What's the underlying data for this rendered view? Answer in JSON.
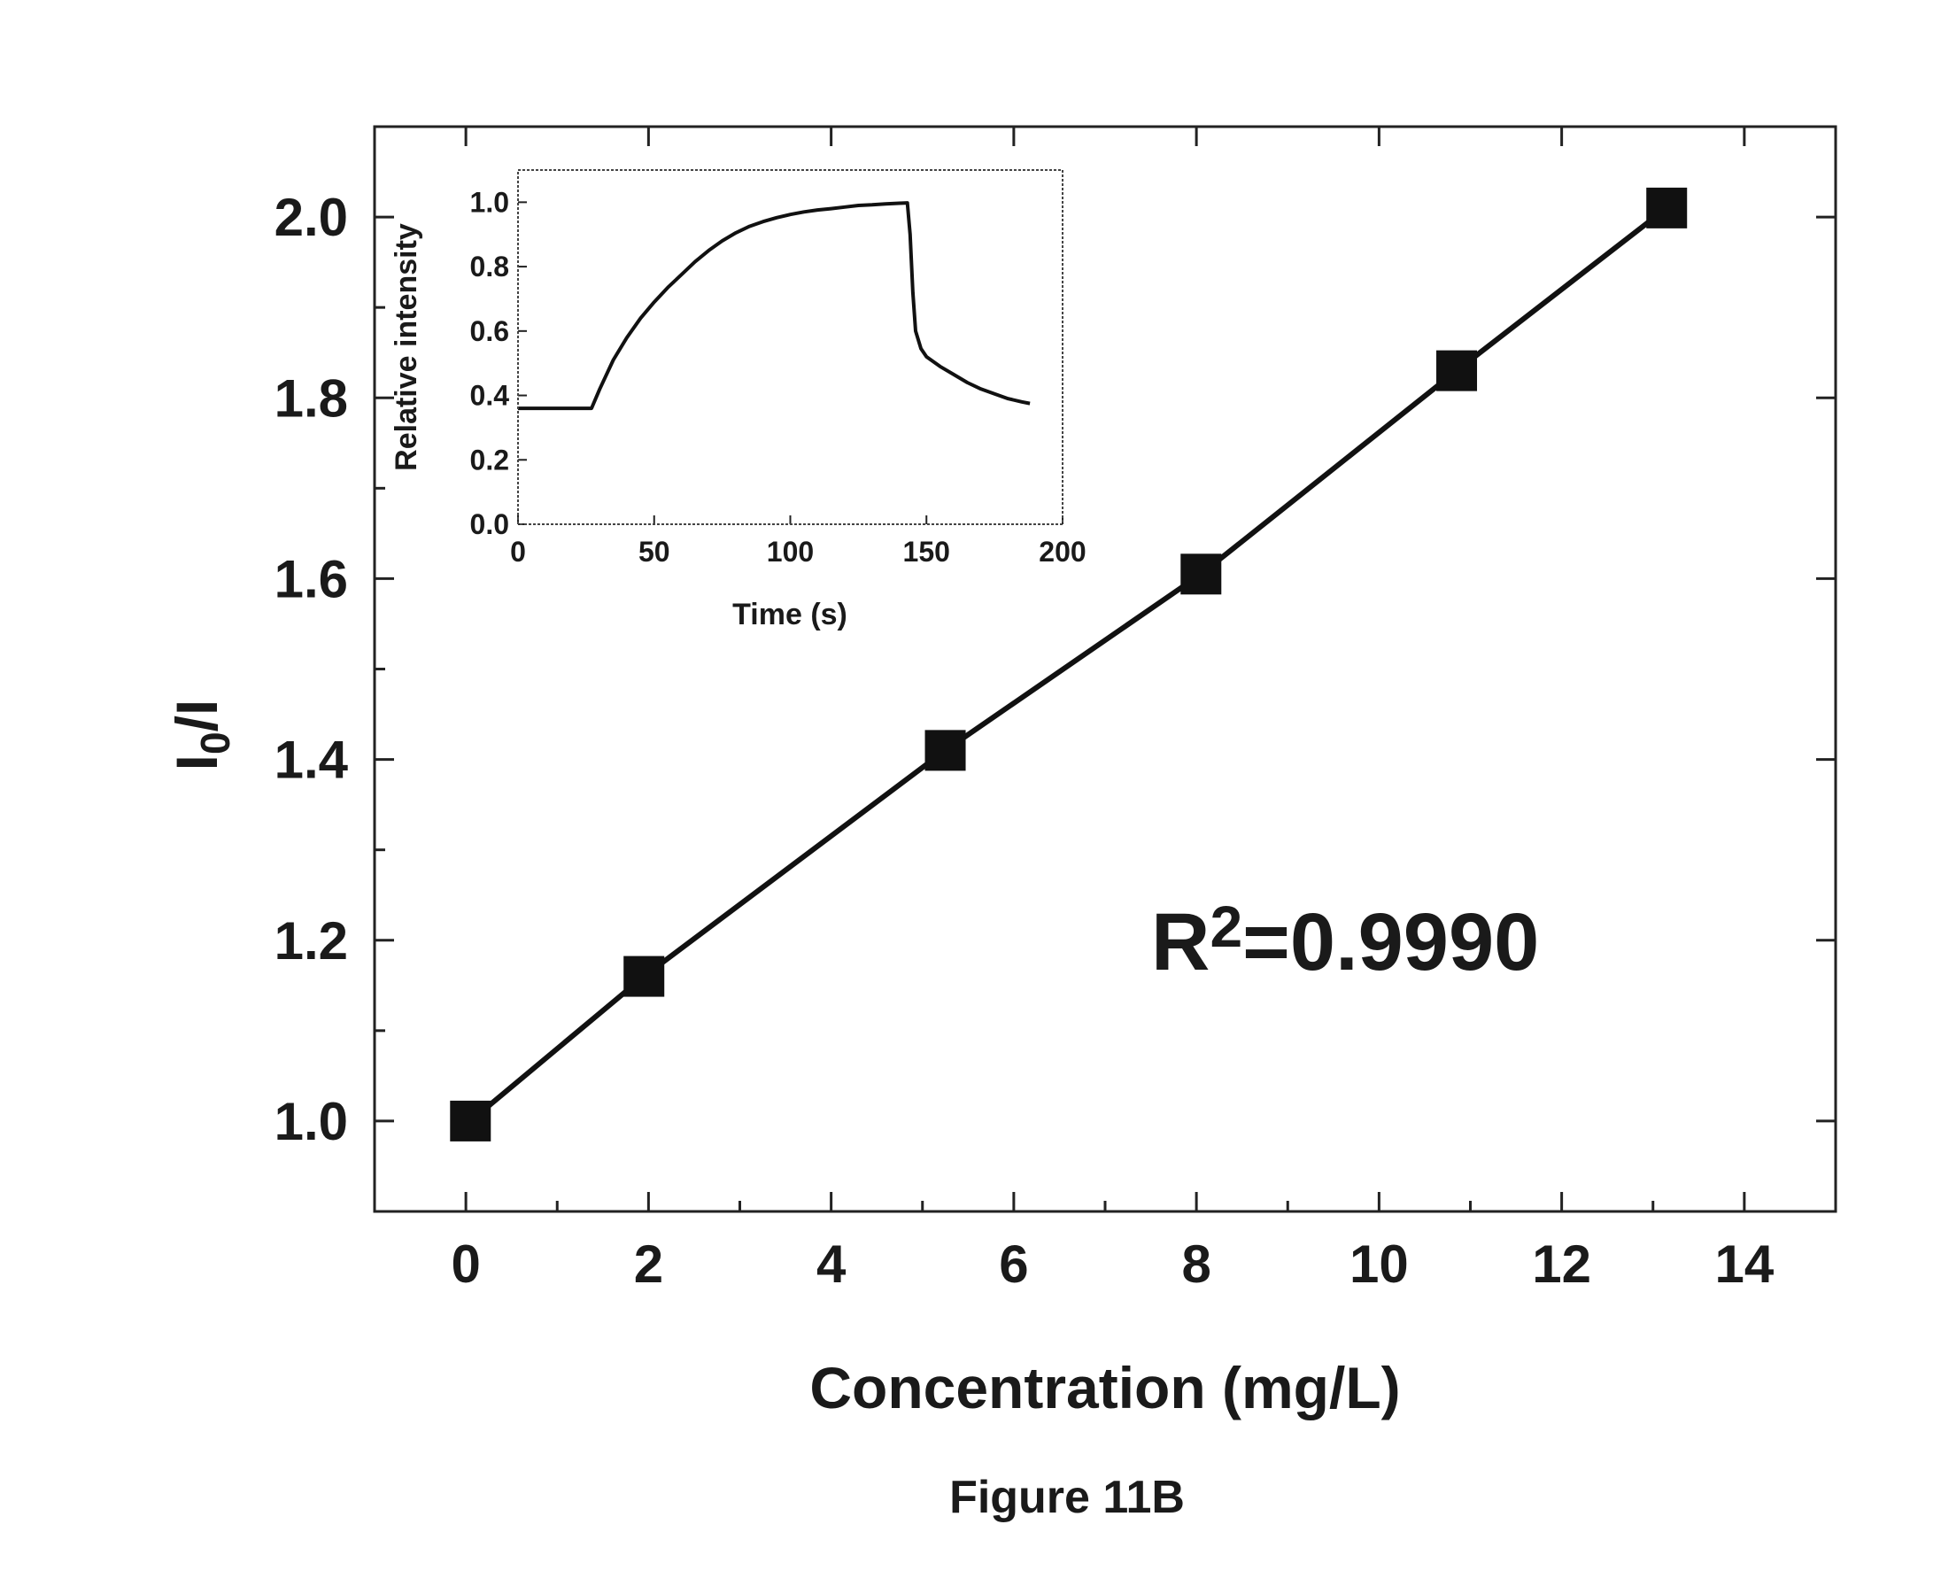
{
  "caption": "Figure 11B",
  "chart_data": [
    {
      "type": "line",
      "xlabel": "Concentration (mg/L)",
      "ylabel": {
        "base": "I",
        "sub": "0",
        "rest": "/I"
      },
      "xlim": [
        -1,
        15
      ],
      "ylim": [
        0.9,
        2.1
      ],
      "xticks": [
        "0",
        "2",
        "4",
        "6",
        "8",
        "10",
        "12",
        "14"
      ],
      "yticks": [
        "1.0",
        "1.2",
        "1.4",
        "1.6",
        "1.8",
        "2.0"
      ],
      "grid": false,
      "marker": "square",
      "series": [
        {
          "x": [
            0.05,
            1.95,
            5.25,
            8.05,
            10.85,
            13.15
          ],
          "y": [
            1.0,
            1.16,
            1.41,
            1.605,
            1.83,
            2.01
          ]
        }
      ],
      "annotation": {
        "base": "R",
        "sup": "2",
        "rest": "=0.9990"
      }
    },
    {
      "type": "line",
      "inset": true,
      "xlabel": "Time (s)",
      "ylabel": "Relative intensity",
      "xlim": [
        0,
        200
      ],
      "ylim": [
        0,
        1.1
      ],
      "xticks": [
        "0",
        "50",
        "100",
        "150",
        "200"
      ],
      "yticks": [
        "0.0",
        "0.2",
        "0.4",
        "0.6",
        "0.8",
        "1.0"
      ],
      "grid": false,
      "series": [
        {
          "x": [
            0,
            10,
            20,
            27,
            30,
            35,
            40,
            45,
            50,
            55,
            60,
            65,
            70,
            75,
            80,
            85,
            90,
            95,
            100,
            105,
            110,
            115,
            120,
            125,
            130,
            135,
            140,
            143,
            144,
            145,
            146,
            148,
            150,
            155,
            160,
            165,
            170,
            175,
            180,
            185,
            188
          ],
          "y": [
            0.36,
            0.36,
            0.36,
            0.36,
            0.42,
            0.51,
            0.58,
            0.64,
            0.69,
            0.735,
            0.775,
            0.815,
            0.85,
            0.88,
            0.905,
            0.925,
            0.94,
            0.952,
            0.962,
            0.97,
            0.976,
            0.98,
            0.985,
            0.99,
            0.992,
            0.995,
            0.997,
            0.998,
            0.9,
            0.72,
            0.6,
            0.545,
            0.52,
            0.49,
            0.465,
            0.44,
            0.42,
            0.405,
            0.39,
            0.38,
            0.375
          ]
        }
      ]
    }
  ]
}
